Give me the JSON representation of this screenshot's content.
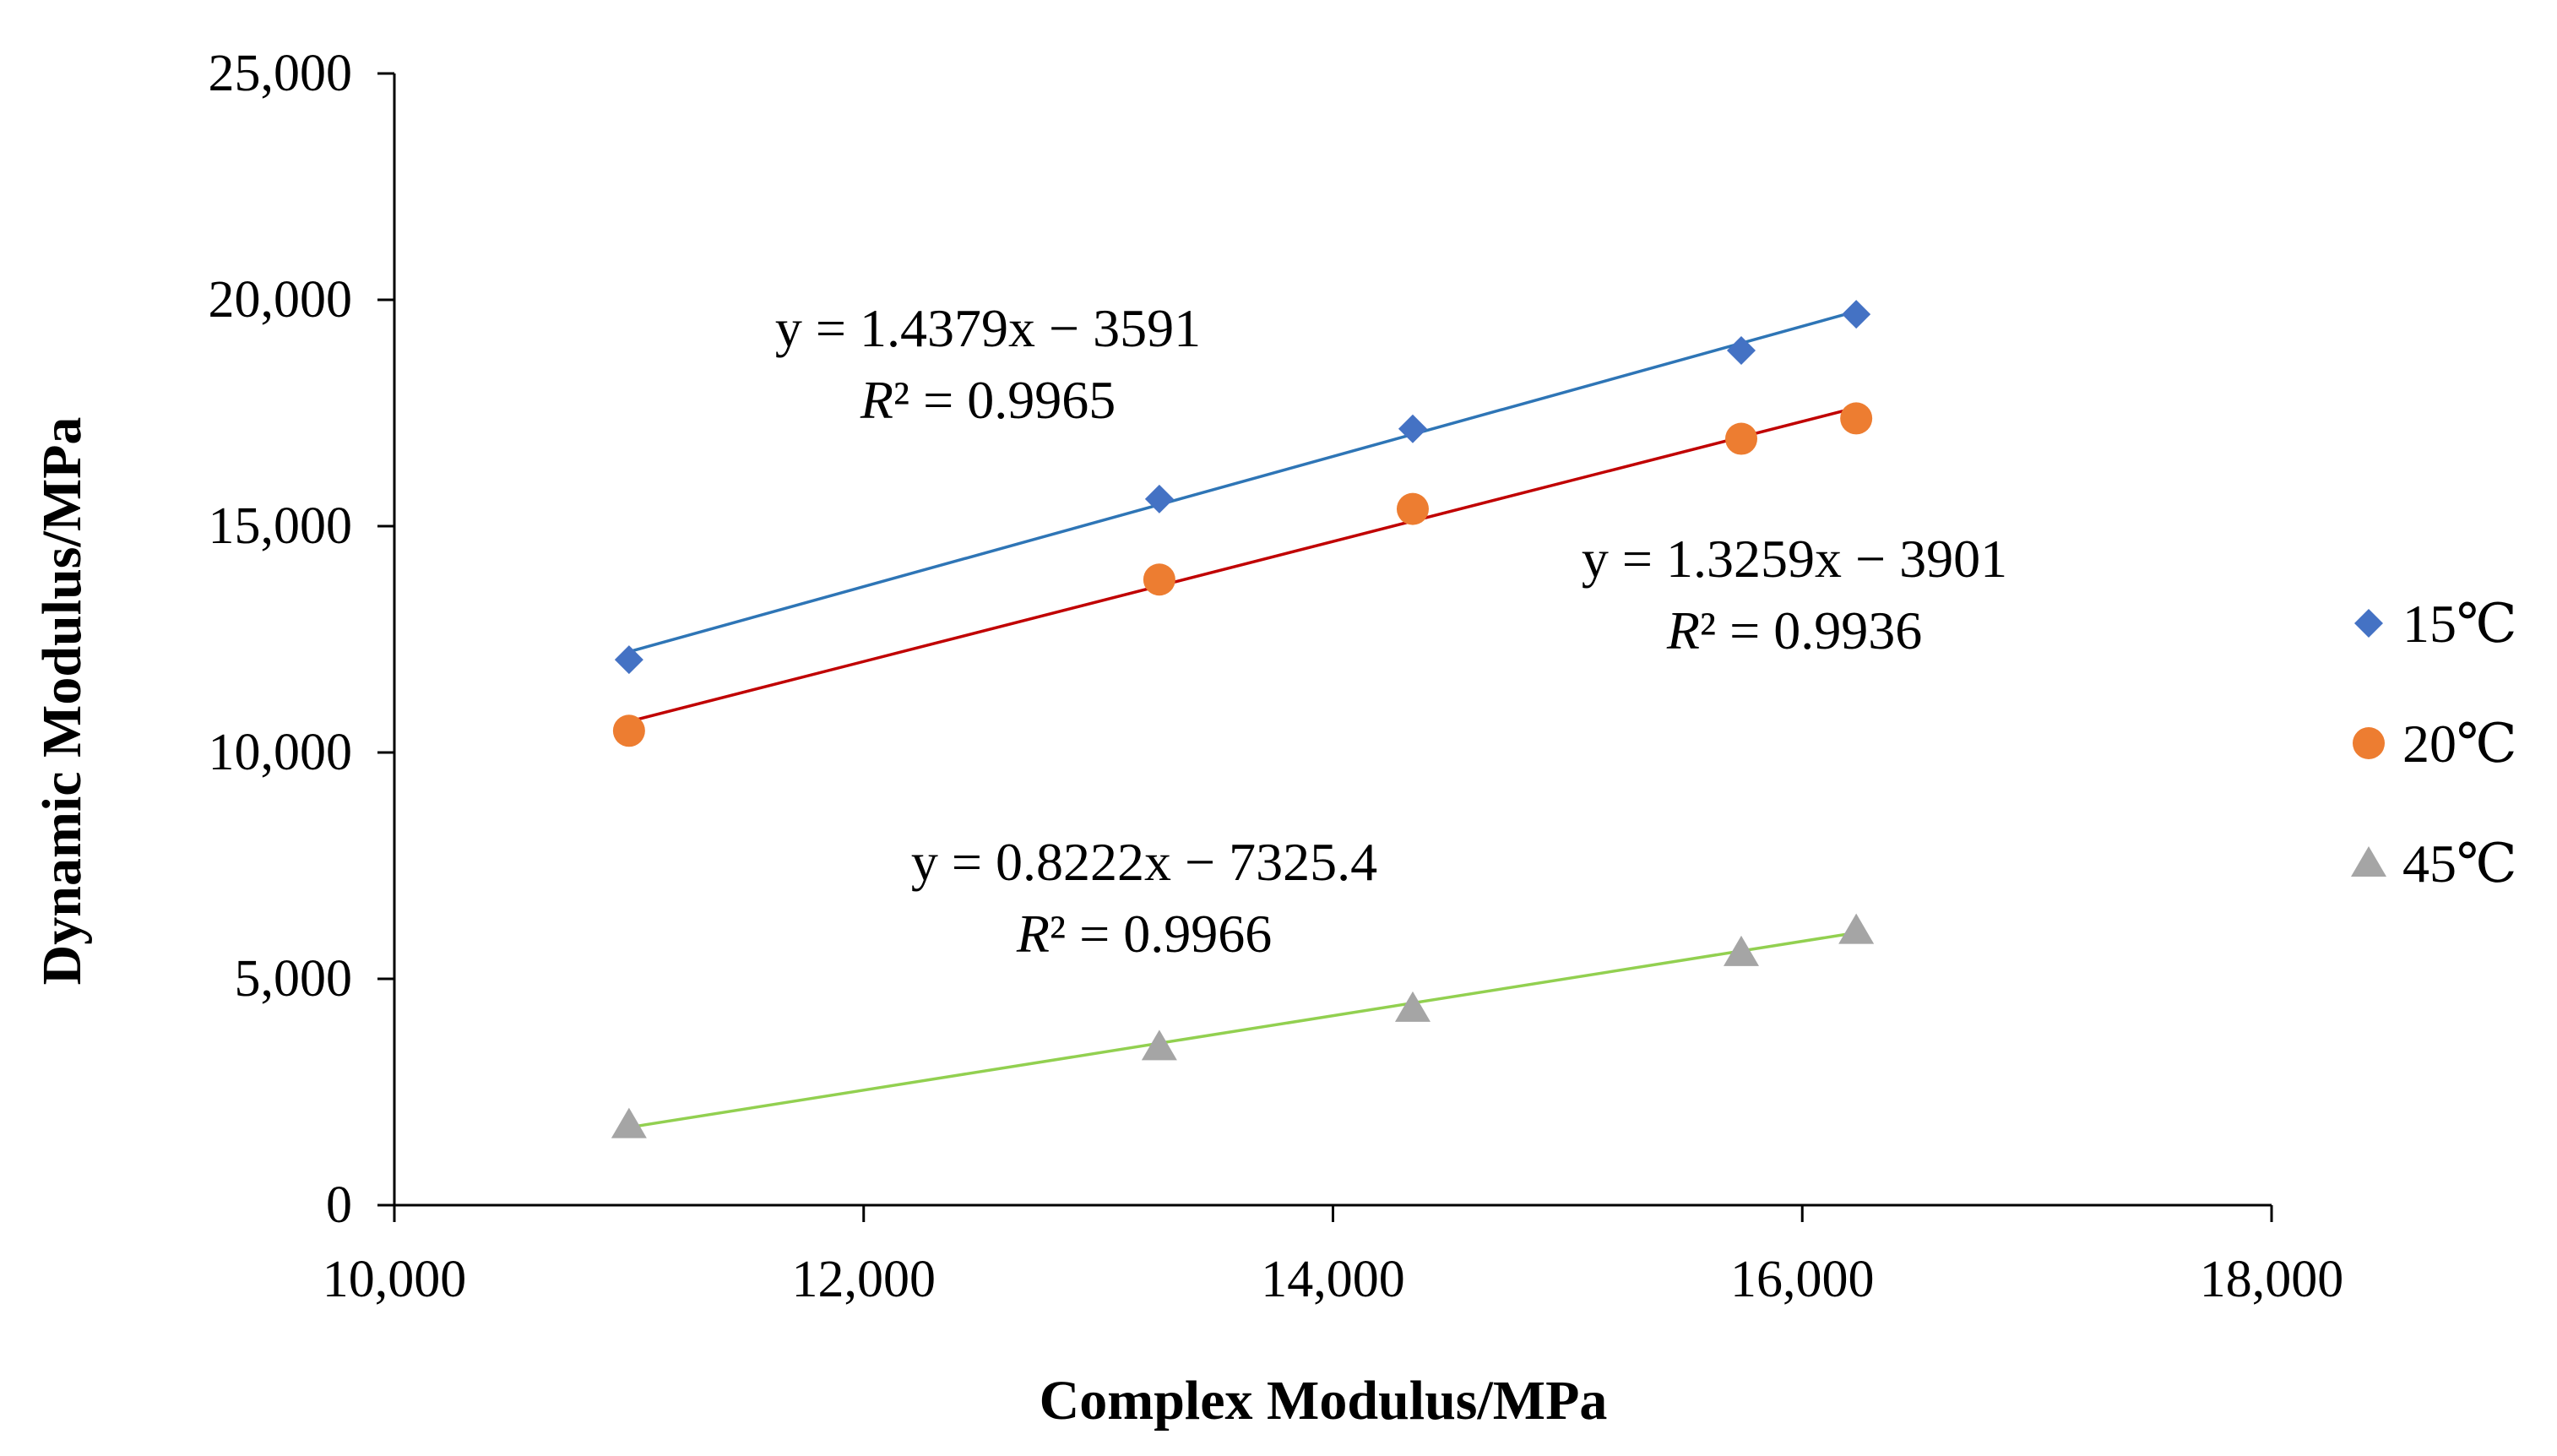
{
  "chart_data": {
    "type": "scatter",
    "title": "",
    "xlabel": "Complex Modulus/MPa",
    "ylabel": "Dynamic Modulus/MPa",
    "xlim": [
      10000,
      18000
    ],
    "ylim": [
      0,
      25000
    ],
    "x_ticks": [
      10000,
      12000,
      14000,
      16000,
      18000
    ],
    "x_tick_labels": [
      "10,000",
      "12,000",
      "14,000",
      "16,000",
      "18,000"
    ],
    "y_ticks": [
      0,
      5000,
      10000,
      15000,
      20000,
      25000
    ],
    "y_tick_labels": [
      "0",
      "5,000",
      "10,000",
      "15,000",
      "20,000",
      "25,000"
    ],
    "grid": false,
    "legend_position": "right",
    "series": [
      {
        "name": "15℃",
        "marker": "diamond",
        "color": "#4472C4",
        "trend_color": "#2E75B6",
        "x": [
          11000,
          13260,
          14340,
          15740,
          16230
        ],
        "y": [
          12050,
          15600,
          17150,
          18880,
          19680
        ],
        "equation": "y = 1.4379x − 3591",
        "r2_prefix": "R",
        "r2_value": "² = 0.9965",
        "slope": 1.4379,
        "intercept": -3591
      },
      {
        "name": "20℃",
        "marker": "circle",
        "color": "#ED7D31",
        "trend_color": "#C00000",
        "x": [
          11000,
          13260,
          14340,
          15740,
          16230
        ],
        "y": [
          10480,
          13820,
          15380,
          16930,
          17380
        ],
        "equation": "y = 1.3259x − 3901",
        "r2_prefix": "R",
        "r2_value": "² = 0.9936",
        "slope": 1.3259,
        "intercept": -3901
      },
      {
        "name": "45℃",
        "marker": "triangle",
        "color": "#A5A5A5",
        "trend_color": "#92D050",
        "x": [
          11000,
          13260,
          14340,
          15740,
          16230
        ],
        "y": [
          1780,
          3500,
          4350,
          5580,
          6070
        ],
        "equation": "y = 0.8222x − 7325.4",
        "r2_prefix": "R",
        "r2_value": "² = 0.9966",
        "slope": 0.8222,
        "intercept": -7325.4
      }
    ]
  }
}
